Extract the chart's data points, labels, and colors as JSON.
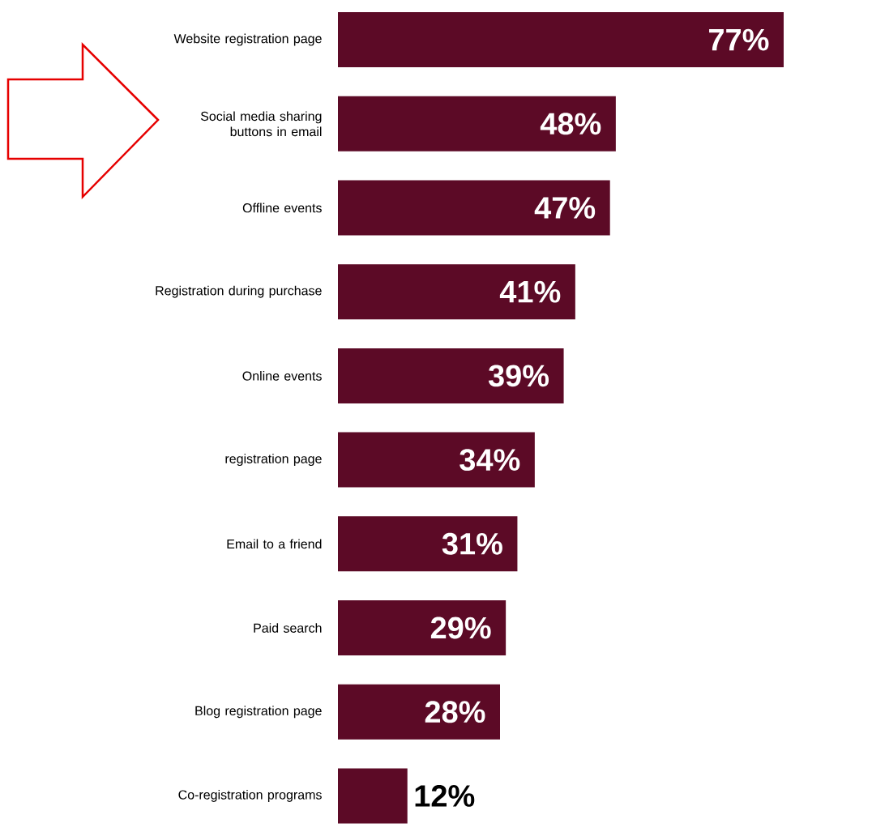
{
  "chart_data": {
    "type": "bar",
    "orientation": "horizontal",
    "color": "#5c0a26",
    "categories": [
      "Website registration page",
      "Social media sharing buttons in email",
      "Offline events",
      "Registration during purchase",
      "Online events",
      "registration page",
      "Email to a friend",
      "Paid search",
      "Blog registration page",
      "Co-registration programs"
    ],
    "values": [
      77,
      48,
      47,
      41,
      39,
      34,
      31,
      29,
      28,
      12
    ],
    "value_labels": [
      "77%",
      "48%",
      "47%",
      "41%",
      "39%",
      "34%",
      "31%",
      "29%",
      "28%",
      "12%"
    ]
  }
}
